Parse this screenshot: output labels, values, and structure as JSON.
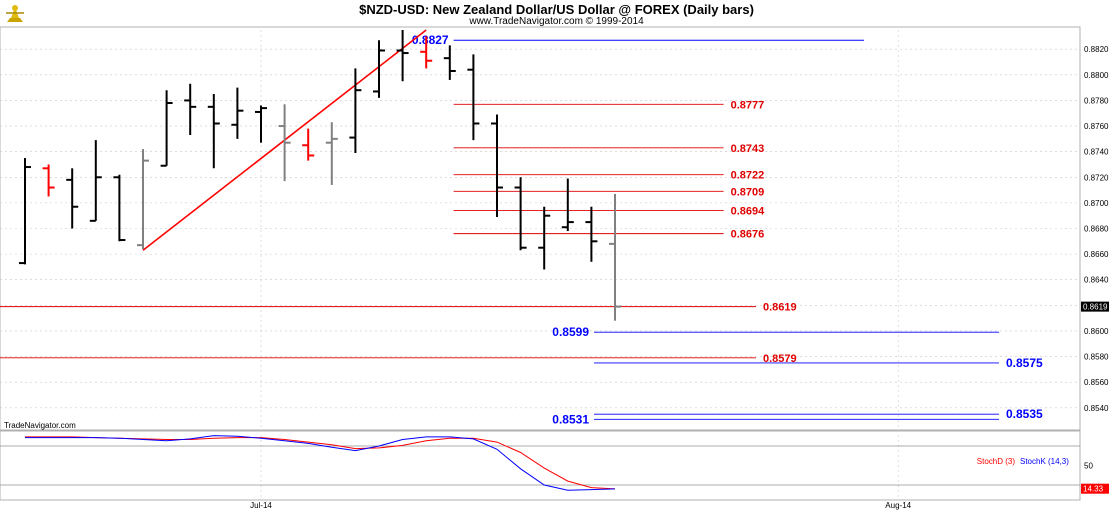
{
  "header": {
    "title": "$NZD-USD:  New Zealand Dollar/US Dollar @ FOREX  (Daily bars)",
    "subtitle": "www.TradeNavigator.com © 1999-2014",
    "watermark": "TradeNavigator.com"
  },
  "colors": {
    "up": "#000000",
    "down": "#ff0000",
    "neutral": "#808080",
    "level_red": "#e00000",
    "level_blue": "#0000ff",
    "stoch_d": "#ff0000",
    "stoch_k": "#0000ff",
    "grid": "#c8c8c8"
  },
  "chart_data": {
    "type": "ohlc",
    "ylim": [
      0.8525,
      0.8835
    ],
    "yticks": [
      "0.8540",
      "0.8560",
      "0.8580",
      "0.8600",
      "0.8620",
      "0.8640",
      "0.8660",
      "0.8680",
      "0.8700",
      "0.8720",
      "0.8740",
      "0.8760",
      "0.8780",
      "0.8800",
      "0.8820"
    ],
    "xlabels": [
      {
        "label": "Jul-14",
        "index": 10
      },
      {
        "label": "Aug-14",
        "index": 37
      }
    ],
    "last_price": "0.8619",
    "bars": [
      {
        "o": 0.8653,
        "h": 0.8735,
        "l": 0.8652,
        "c": 0.8728,
        "color": "up"
      },
      {
        "o": 0.8727,
        "h": 0.873,
        "l": 0.8705,
        "c": 0.8712,
        "color": "down"
      },
      {
        "o": 0.8718,
        "h": 0.8727,
        "l": 0.868,
        "c": 0.8697,
        "color": "up"
      },
      {
        "o": 0.8686,
        "h": 0.8749,
        "l": 0.8686,
        "c": 0.872,
        "color": "up"
      },
      {
        "o": 0.872,
        "h": 0.8722,
        "l": 0.867,
        "c": 0.8671,
        "color": "up"
      },
      {
        "o": 0.8667,
        "h": 0.8742,
        "l": 0.8664,
        "c": 0.8733,
        "color": "neutral"
      },
      {
        "o": 0.8729,
        "h": 0.8788,
        "l": 0.8729,
        "c": 0.8778,
        "color": "up"
      },
      {
        "o": 0.878,
        "h": 0.8793,
        "l": 0.8753,
        "c": 0.8775,
        "color": "up"
      },
      {
        "o": 0.8775,
        "h": 0.8785,
        "l": 0.8727,
        "c": 0.8762,
        "color": "up"
      },
      {
        "o": 0.8761,
        "h": 0.879,
        "l": 0.875,
        "c": 0.8772,
        "color": "up"
      },
      {
        "o": 0.8771,
        "h": 0.8776,
        "l": 0.8747,
        "c": 0.8774,
        "color": "up"
      },
      {
        "o": 0.876,
        "h": 0.8777,
        "l": 0.8717,
        "c": 0.8747,
        "color": "neutral"
      },
      {
        "o": 0.8745,
        "h": 0.8758,
        "l": 0.8733,
        "c": 0.8737,
        "color": "down"
      },
      {
        "o": 0.8747,
        "h": 0.8763,
        "l": 0.8714,
        "c": 0.875,
        "color": "neutral"
      },
      {
        "o": 0.8751,
        "h": 0.8805,
        "l": 0.8739,
        "c": 0.8788,
        "color": "up"
      },
      {
        "o": 0.8787,
        "h": 0.8827,
        "l": 0.8782,
        "c": 0.8819,
        "color": "up"
      },
      {
        "o": 0.8819,
        "h": 0.8835,
        "l": 0.8795,
        "c": 0.8817,
        "color": "up"
      },
      {
        "o": 0.8818,
        "h": 0.883,
        "l": 0.8805,
        "c": 0.8811,
        "color": "down"
      },
      {
        "o": 0.8813,
        "h": 0.8823,
        "l": 0.8796,
        "c": 0.8803,
        "color": "up"
      },
      {
        "o": 0.8804,
        "h": 0.8816,
        "l": 0.8749,
        "c": 0.8762,
        "color": "up"
      },
      {
        "o": 0.8762,
        "h": 0.8769,
        "l": 0.8689,
        "c": 0.8712,
        "color": "up"
      },
      {
        "o": 0.8712,
        "h": 0.872,
        "l": 0.8663,
        "c": 0.8665,
        "color": "up"
      },
      {
        "o": 0.8665,
        "h": 0.8697,
        "l": 0.8648,
        "c": 0.869,
        "color": "up"
      },
      {
        "o": 0.8681,
        "h": 0.8719,
        "l": 0.8678,
        "c": 0.8685,
        "color": "up"
      },
      {
        "o": 0.8685,
        "h": 0.8697,
        "l": 0.8654,
        "c": 0.867,
        "color": "up"
      },
      {
        "o": 0.8668,
        "h": 0.8707,
        "l": 0.8608,
        "c": 0.8619,
        "color": "neutral"
      }
    ],
    "trendline": {
      "from_index": 5,
      "from_value": 0.8663,
      "to_index": 17,
      "to_value": 0.8835,
      "color": "down"
    },
    "levels": [
      {
        "label": "0.8827",
        "value": 0.8827,
        "color": "level_blue",
        "x1_frac": 0.42,
        "x2_frac": 0.8,
        "label_side": "left"
      },
      {
        "label": "0.8777",
        "value": 0.8777,
        "color": "level_red",
        "x1_frac": 0.42,
        "x2_frac": 0.67,
        "label_side": "right"
      },
      {
        "label": "0.8743",
        "value": 0.8743,
        "color": "level_red",
        "x1_frac": 0.42,
        "x2_frac": 0.67,
        "label_side": "right"
      },
      {
        "label": "0.8722",
        "value": 0.8722,
        "color": "level_red",
        "x1_frac": 0.42,
        "x2_frac": 0.67,
        "label_side": "right"
      },
      {
        "label": "0.8709",
        "value": 0.8709,
        "color": "level_red",
        "x1_frac": 0.42,
        "x2_frac": 0.67,
        "label_side": "right"
      },
      {
        "label": "0.8694",
        "value": 0.8694,
        "color": "level_red",
        "x1_frac": 0.42,
        "x2_frac": 0.67,
        "label_side": "right"
      },
      {
        "label": "0.8676",
        "value": 0.8676,
        "color": "level_red",
        "x1_frac": 0.42,
        "x2_frac": 0.67,
        "label_side": "right"
      },
      {
        "label": "0.8619",
        "value": 0.8619,
        "color": "level_red",
        "x1_frac": 0.0,
        "x2_frac": 0.7,
        "label_side": "right"
      },
      {
        "label": "0.8599",
        "value": 0.8599,
        "color": "level_blue",
        "x1_frac": 0.55,
        "x2_frac": 0.925,
        "label_side": "left"
      },
      {
        "label": "0.8579",
        "value": 0.8579,
        "color": "level_red",
        "x1_frac": 0.0,
        "x2_frac": 0.7,
        "label_side": "right"
      },
      {
        "label": "0.8575",
        "value": 0.8575,
        "color": "level_blue",
        "x1_frac": 0.55,
        "x2_frac": 0.925,
        "label_side": "right"
      },
      {
        "label": "0.8535",
        "value": 0.8535,
        "color": "level_blue",
        "x1_frac": 0.55,
        "x2_frac": 0.925,
        "label_side": "right"
      },
      {
        "label": "0.8531",
        "value": 0.8531,
        "color": "level_blue",
        "x1_frac": 0.55,
        "x2_frac": 0.925,
        "label_side": "left"
      }
    ],
    "stochastic": {
      "legend_d": "StochD (3)",
      "legend_k": "StochK (14,3)",
      "tick_label": "50",
      "tick_value": 50,
      "last_value": "14.33",
      "k": [
        93,
        93,
        93,
        93,
        92,
        90,
        88,
        91,
        96,
        95,
        92,
        88,
        84,
        78,
        73,
        80,
        90,
        94,
        94,
        91,
        75,
        45,
        20,
        12,
        13,
        14
      ],
      "d": [
        94,
        94,
        94,
        93,
        92,
        91,
        90,
        90,
        92,
        93,
        93,
        90,
        86,
        82,
        76,
        77,
        81,
        88,
        92,
        92,
        86,
        70,
        46,
        26,
        16,
        14
      ]
    }
  }
}
